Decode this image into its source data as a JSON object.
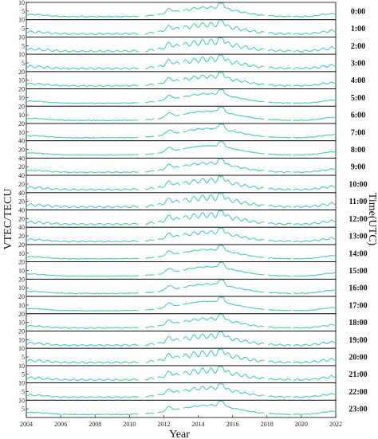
{
  "chart_data": {
    "type": "line",
    "xlabel": "Year",
    "ylabel": "VTEC/TECU",
    "right_label": "Time(UTC)",
    "xlim": [
      2004,
      2022
    ],
    "x_ticks": [
      "2004",
      "2006",
      "2008",
      "2010",
      "2012",
      "2014",
      "2016",
      "2018",
      "2020",
      "2022"
    ],
    "line_color": "#4fcbc4",
    "grid": false,
    "panels": [
      {
        "time": "0:00",
        "ylim": [
          0,
          10
        ],
        "yticks": [
          "5",
          "10"
        ]
      },
      {
        "time": "1:00",
        "ylim": [
          0,
          10
        ],
        "yticks": [
          "5",
          "10"
        ]
      },
      {
        "time": "2:00",
        "ylim": [
          0,
          10
        ],
        "yticks": [
          "5",
          "10"
        ]
      },
      {
        "time": "3:00",
        "ylim": [
          0,
          10
        ],
        "yticks": [
          "5",
          "10"
        ]
      },
      {
        "time": "4:00",
        "ylim": [
          0,
          20
        ],
        "yticks": [
          "10",
          "20"
        ]
      },
      {
        "time": "5:00",
        "ylim": [
          0,
          20
        ],
        "yticks": [
          "10",
          "20"
        ]
      },
      {
        "time": "6:00",
        "ylim": [
          0,
          20
        ],
        "yticks": [
          "10",
          "20"
        ]
      },
      {
        "time": "7:00",
        "ylim": [
          0,
          20
        ],
        "yticks": [
          "10",
          "20"
        ]
      },
      {
        "time": "8:00",
        "ylim": [
          0,
          40
        ],
        "yticks": [
          "20",
          "40"
        ]
      },
      {
        "time": "9:00",
        "ylim": [
          0,
          40
        ],
        "yticks": [
          "20",
          "40"
        ]
      },
      {
        "time": "10:00",
        "ylim": [
          0,
          40
        ],
        "yticks": [
          "20",
          "40"
        ]
      },
      {
        "time": "11:00",
        "ylim": [
          0,
          40
        ],
        "yticks": [
          "20",
          "40"
        ]
      },
      {
        "time": "12:00",
        "ylim": [
          0,
          40
        ],
        "yticks": [
          "20",
          "40"
        ]
      },
      {
        "time": "13:00",
        "ylim": [
          0,
          40
        ],
        "yticks": [
          "20",
          "40"
        ]
      },
      {
        "time": "14:00",
        "ylim": [
          0,
          20
        ],
        "yticks": [
          "10",
          "20"
        ]
      },
      {
        "time": "15:00",
        "ylim": [
          0,
          20
        ],
        "yticks": [
          "10",
          "20"
        ]
      },
      {
        "time": "16:00",
        "ylim": [
          0,
          20
        ],
        "yticks": [
          "10",
          "20"
        ]
      },
      {
        "time": "17:00",
        "ylim": [
          0,
          20
        ],
        "yticks": [
          "10",
          "20"
        ]
      },
      {
        "time": "18:00",
        "ylim": [
          0,
          20
        ],
        "yticks": [
          "10",
          "20"
        ]
      },
      {
        "time": "19:00",
        "ylim": [
          0,
          20
        ],
        "yticks": [
          "10",
          "20"
        ]
      },
      {
        "time": "20:00",
        "ylim": [
          0,
          10
        ],
        "yticks": [
          "5",
          "10"
        ]
      },
      {
        "time": "21:00",
        "ylim": [
          0,
          10
        ],
        "yticks": [
          "5",
          "10"
        ]
      },
      {
        "time": "22:00",
        "ylim": [
          0,
          10
        ],
        "yticks": [
          "5",
          "10"
        ]
      },
      {
        "time": "23:00",
        "ylim": [
          0,
          10
        ],
        "yticks": [
          "5",
          "10"
        ]
      }
    ]
  }
}
